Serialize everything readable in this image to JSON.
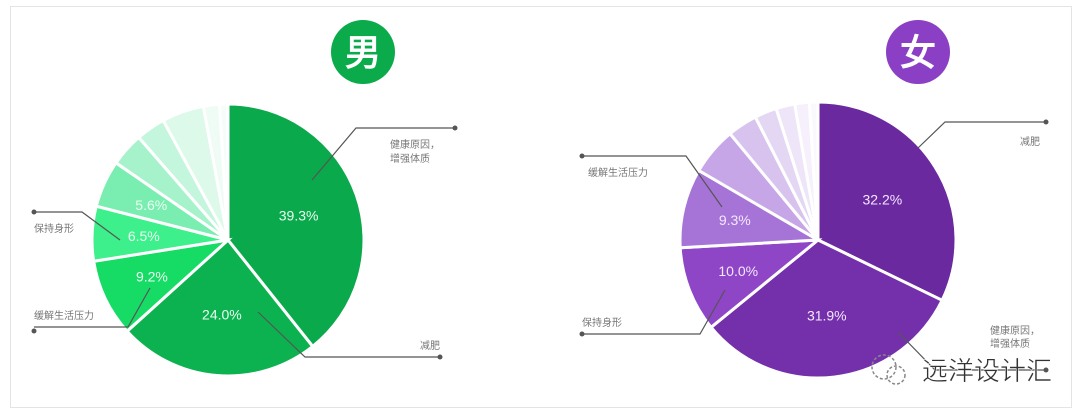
{
  "chart_data": [
    {
      "type": "pie",
      "title": "男",
      "accent": "#0bab4c",
      "slices": [
        {
          "label": "健康原因，增强体质",
          "value": 39.3,
          "value_label": "39.3%",
          "color": "#0aa94b"
        },
        {
          "label": "减肥",
          "value": 24.0,
          "value_label": "24.0%",
          "color": "#0db250"
        },
        {
          "label": "缓解生活压力",
          "value": 9.2,
          "value_label": "9.2%",
          "color": "#16dc66"
        },
        {
          "label": "保持身形",
          "value": 6.5,
          "value_label": "6.5%",
          "color": "#3ef08c"
        },
        {
          "label": "",
          "value": 5.6,
          "value_label": "5.6%",
          "color": "#7aeeb0"
        },
        {
          "label": "",
          "value": 4.0,
          "value_label": "",
          "color": "#a6f2cb"
        },
        {
          "label": "",
          "value": 3.5,
          "value_label": "",
          "color": "#c4f6dd"
        },
        {
          "label": "",
          "value": 5.0,
          "value_label": "",
          "color": "#dcf9ea"
        },
        {
          "label": "",
          "value": 1.9,
          "value_label": "",
          "color": "#eefcf5"
        },
        {
          "label": "",
          "value": 1.0,
          "value_label": "",
          "color": "#f6fdf9"
        }
      ]
    },
    {
      "type": "pie",
      "title": "女",
      "accent": "#8a3fc4",
      "slices": [
        {
          "label": "减肥",
          "value": 32.2,
          "value_label": "32.2%",
          "color": "#6b29a0"
        },
        {
          "label": "健康原因，增强体质",
          "value": 31.9,
          "value_label": "31.9%",
          "color": "#7330aa"
        },
        {
          "label": "保持身形",
          "value": 10.0,
          "value_label": "10.0%",
          "color": "#8e45c6"
        },
        {
          "label": "缓解生活压力",
          "value": 9.3,
          "value_label": "9.3%",
          "color": "#a674d6"
        },
        {
          "label": "",
          "value": 5.6,
          "value_label": "",
          "color": "#c6a6e6"
        },
        {
          "label": "",
          "value": 3.5,
          "value_label": "",
          "color": "#d8c3ee"
        },
        {
          "label": "",
          "value": 2.6,
          "value_label": "",
          "color": "#e4d7f3"
        },
        {
          "label": "",
          "value": 2.2,
          "value_label": "",
          "color": "#eee5f8"
        },
        {
          "label": "",
          "value": 1.7,
          "value_label": "",
          "color": "#f5f0fb"
        },
        {
          "label": "",
          "value": 1.0,
          "value_label": "",
          "color": "#faf8fd"
        }
      ]
    }
  ],
  "watermark": "远洋设计汇"
}
